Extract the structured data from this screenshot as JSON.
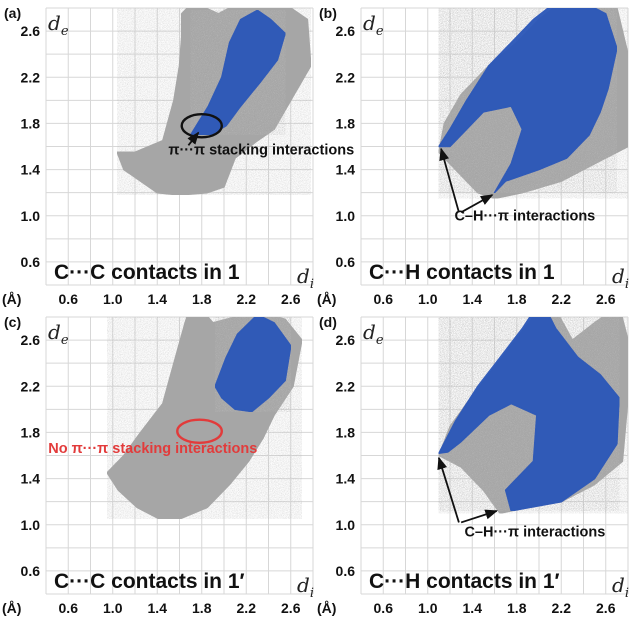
{
  "chart_data": [
    {
      "type": "scatter",
      "panel_label": "(a)",
      "caption": "C···C contacts in 1",
      "xlabel": "d",
      "xlabel_sub": "i",
      "ylabel": "d",
      "ylabel_sub": "e",
      "unit_label": "(Å)",
      "xlim": [
        0.4,
        2.8
      ],
      "ylim": [
        0.4,
        2.8
      ],
      "xticks": [
        "0.6",
        "1.0",
        "1.4",
        "1.8",
        "2.2",
        "2.6"
      ],
      "yticks": [
        "0.6",
        "1.0",
        "1.4",
        "1.8",
        "2.2",
        "2.6"
      ],
      "grid": true,
      "colors": {
        "cloud": "#a6a6a6",
        "highlight": "#2956b8",
        "marker": "#111111",
        "text": "#111111"
      },
      "series": [],
      "regions": [
        {
          "role": "cloud",
          "points": [
            [
              1.04,
              1.55
            ],
            [
              1.2,
              1.55
            ],
            [
              1.45,
              1.65
            ],
            [
              1.55,
              2.0
            ],
            [
              1.6,
              2.3
            ],
            [
              1.62,
              2.55
            ],
            [
              1.62,
              2.75
            ],
            [
              1.72,
              2.85
            ],
            [
              1.95,
              2.75
            ],
            [
              2.15,
              2.85
            ],
            [
              2.4,
              2.8
            ],
            [
              2.6,
              2.8
            ],
            [
              2.75,
              2.7
            ],
            [
              2.78,
              2.3
            ],
            [
              2.6,
              2.0
            ],
            [
              2.45,
              1.75
            ],
            [
              2.3,
              1.65
            ],
            [
              2.1,
              1.5
            ],
            [
              2.0,
              1.25
            ],
            [
              1.85,
              1.2
            ],
            [
              1.6,
              1.18
            ],
            [
              1.4,
              1.2
            ],
            [
              1.25,
              1.3
            ],
            [
              1.1,
              1.4
            ]
          ]
        },
        {
          "role": "highlight",
          "points": [
            [
              1.7,
              1.7
            ],
            [
              1.86,
              1.95
            ],
            [
              1.98,
              2.2
            ],
            [
              2.05,
              2.5
            ],
            [
              2.15,
              2.7
            ],
            [
              2.3,
              2.78
            ],
            [
              2.42,
              2.7
            ],
            [
              2.55,
              2.58
            ],
            [
              2.48,
              2.35
            ],
            [
              2.32,
              2.15
            ],
            [
              2.15,
              1.95
            ],
            [
              2.02,
              1.78
            ],
            [
              1.88,
              1.7
            ]
          ]
        }
      ],
      "markers": [
        {
          "shape": "ellipse",
          "cx": 1.8,
          "cy": 1.78,
          "rx": 0.18,
          "ry": 0.1,
          "color": "#111111"
        }
      ],
      "annotations": [
        {
          "text": "π···π stacking interactions",
          "anchor": [
            1.5,
            1.53
          ],
          "color": "#111111",
          "arrows": [
            [
              [
                1.68,
                1.61
              ],
              [
                1.77,
                1.72
              ]
            ]
          ]
        }
      ]
    },
    {
      "type": "scatter",
      "panel_label": "(b)",
      "caption": "C···H contacts in 1",
      "xlabel": "d",
      "xlabel_sub": "i",
      "ylabel": "d",
      "ylabel_sub": "e",
      "unit_label": "(Å)",
      "xlim": [
        0.4,
        2.8
      ],
      "ylim": [
        0.4,
        2.8
      ],
      "xticks": [
        "0.6",
        "1.0",
        "1.4",
        "1.8",
        "2.2",
        "2.6"
      ],
      "yticks": [
        "0.6",
        "1.0",
        "1.4",
        "1.8",
        "2.2",
        "2.6"
      ],
      "grid": true,
      "colors": {
        "cloud": "#a6a6a6",
        "highlight": "#2956b8",
        "marker": "#111111",
        "text": "#111111"
      },
      "series": [],
      "regions": [
        {
          "role": "cloud",
          "points": [
            [
              1.1,
              1.55
            ],
            [
              1.2,
              1.45
            ],
            [
              1.45,
              1.2
            ],
            [
              1.6,
              1.15
            ],
            [
              1.85,
              1.2
            ],
            [
              2.2,
              1.3
            ],
            [
              2.6,
              1.5
            ],
            [
              2.8,
              1.6
            ],
            [
              2.8,
              2.4
            ],
            [
              2.7,
              2.8
            ],
            [
              2.5,
              2.9
            ],
            [
              2.2,
              2.85
            ],
            [
              2.0,
              2.7
            ],
            [
              1.8,
              2.5
            ],
            [
              1.55,
              2.3
            ],
            [
              1.3,
              2.05
            ],
            [
              1.15,
              1.8
            ]
          ]
        },
        {
          "role": "highlight",
          "points": [
            [
              1.1,
              1.6
            ],
            [
              1.2,
              1.75
            ],
            [
              1.35,
              2.0
            ],
            [
              1.55,
              2.3
            ],
            [
              1.75,
              2.5
            ],
            [
              1.95,
              2.7
            ],
            [
              2.15,
              2.85
            ],
            [
              2.4,
              2.85
            ],
            [
              2.6,
              2.75
            ],
            [
              2.7,
              2.45
            ],
            [
              2.62,
              2.1
            ],
            [
              2.55,
              1.9
            ],
            [
              2.45,
              1.7
            ],
            [
              2.25,
              1.5
            ],
            [
              2.0,
              1.4
            ],
            [
              1.7,
              1.3
            ],
            [
              1.6,
              1.2
            ],
            [
              1.75,
              1.45
            ],
            [
              1.85,
              1.75
            ],
            [
              1.75,
              1.95
            ],
            [
              1.5,
              1.9
            ],
            [
              1.35,
              1.75
            ],
            [
              1.2,
              1.6
            ]
          ]
        }
      ],
      "markers": [],
      "annotations": [
        {
          "text": "C–H···π interactions",
          "anchor": [
            1.24,
            0.96
          ],
          "color": "#111111",
          "arrows": [
            [
              [
                1.28,
                1.03
              ],
              [
                1.12,
                1.58
              ]
            ],
            [
              [
                1.3,
                1.03
              ],
              [
                1.58,
                1.18
              ]
            ]
          ]
        }
      ]
    },
    {
      "type": "scatter",
      "panel_label": "(c)",
      "caption": "C···C contacts in 1′",
      "xlabel": "d",
      "xlabel_sub": "i",
      "ylabel": "d",
      "ylabel_sub": "e",
      "unit_label": "(Å)",
      "xlim": [
        0.4,
        2.8
      ],
      "ylim": [
        0.4,
        2.8
      ],
      "xticks": [
        "0.6",
        "1.0",
        "1.4",
        "1.8",
        "2.2",
        "2.6"
      ],
      "yticks": [
        "0.6",
        "1.0",
        "1.4",
        "1.8",
        "2.2",
        "2.6"
      ],
      "grid": true,
      "colors": {
        "cloud": "#a6a6a6",
        "highlight": "#2956b8",
        "marker": "#e23b3b",
        "text": "#e23b3b"
      },
      "series": [],
      "regions": [
        {
          "role": "cloud",
          "points": [
            [
              0.95,
              1.45
            ],
            [
              1.1,
              1.6
            ],
            [
              1.25,
              1.8
            ],
            [
              1.45,
              2.05
            ],
            [
              1.55,
              2.4
            ],
            [
              1.65,
              2.75
            ],
            [
              1.72,
              2.95
            ],
            [
              1.9,
              2.75
            ],
            [
              2.1,
              2.8
            ],
            [
              2.3,
              2.85
            ],
            [
              2.55,
              2.78
            ],
            [
              2.7,
              2.6
            ],
            [
              2.62,
              2.2
            ],
            [
              2.45,
              1.95
            ],
            [
              2.35,
              1.75
            ],
            [
              2.22,
              1.55
            ],
            [
              2.05,
              1.35
            ],
            [
              1.85,
              1.15
            ],
            [
              1.6,
              1.05
            ],
            [
              1.42,
              1.05
            ],
            [
              1.22,
              1.15
            ],
            [
              1.05,
              1.3
            ]
          ]
        },
        {
          "role": "highlight",
          "points": [
            [
              1.92,
              2.2
            ],
            [
              2.02,
              2.45
            ],
            [
              2.12,
              2.65
            ],
            [
              2.3,
              2.82
            ],
            [
              2.45,
              2.75
            ],
            [
              2.6,
              2.55
            ],
            [
              2.55,
              2.25
            ],
            [
              2.4,
              2.1
            ],
            [
              2.25,
              1.98
            ],
            [
              2.1,
              2.0
            ],
            [
              1.98,
              2.1
            ]
          ]
        }
      ],
      "markers": [
        {
          "shape": "ellipse",
          "cx": 1.78,
          "cy": 1.81,
          "rx": 0.2,
          "ry": 0.1,
          "color": "#e23b3b"
        }
      ],
      "annotations": [
        {
          "text": "No π···π stacking interactions",
          "anchor": [
            0.42,
            1.62
          ],
          "color": "#e23b3b",
          "arrows": []
        }
      ]
    },
    {
      "type": "scatter",
      "panel_label": "(d)",
      "caption": "C···H contacts in 1′",
      "xlabel": "d",
      "xlabel_sub": "i",
      "ylabel": "d",
      "ylabel_sub": "e",
      "unit_label": "(Å)",
      "xlim": [
        0.4,
        2.8
      ],
      "ylim": [
        0.4,
        2.8
      ],
      "xticks": [
        "0.6",
        "1.0",
        "1.4",
        "1.8",
        "2.2",
        "2.6"
      ],
      "yticks": [
        "0.6",
        "1.0",
        "1.4",
        "1.8",
        "2.2",
        "2.6"
      ],
      "grid": true,
      "colors": {
        "cloud": "#a6a6a6",
        "highlight": "#2956b8",
        "marker": "#111111",
        "text": "#111111"
      },
      "series": [],
      "regions": [
        {
          "role": "cloud",
          "points": [
            [
              1.1,
              1.6
            ],
            [
              1.3,
              1.5
            ],
            [
              1.5,
              1.3
            ],
            [
              1.65,
              1.1
            ],
            [
              1.9,
              1.15
            ],
            [
              2.2,
              1.2
            ],
            [
              2.5,
              1.35
            ],
            [
              2.75,
              1.55
            ],
            [
              2.8,
              2.1
            ],
            [
              2.8,
              2.6
            ],
            [
              2.72,
              2.9
            ],
            [
              2.5,
              2.75
            ],
            [
              2.3,
              2.6
            ],
            [
              2.1,
              2.95
            ],
            [
              1.95,
              2.8
            ],
            [
              1.75,
              2.55
            ],
            [
              1.55,
              2.3
            ],
            [
              1.35,
              2.05
            ],
            [
              1.2,
              1.85
            ]
          ]
        },
        {
          "role": "highlight",
          "points": [
            [
              1.1,
              1.62
            ],
            [
              1.25,
              1.9
            ],
            [
              1.45,
              2.2
            ],
            [
              1.65,
              2.45
            ],
            [
              1.85,
              2.7
            ],
            [
              2.02,
              2.95
            ],
            [
              2.15,
              2.7
            ],
            [
              2.35,
              2.45
            ],
            [
              2.55,
              2.3
            ],
            [
              2.72,
              2.1
            ],
            [
              2.7,
              1.7
            ],
            [
              2.5,
              1.4
            ],
            [
              2.2,
              1.2
            ],
            [
              1.75,
              1.12
            ],
            [
              1.7,
              1.3
            ],
            [
              1.95,
              1.55
            ],
            [
              1.98,
              1.95
            ],
            [
              1.75,
              2.05
            ],
            [
              1.55,
              1.95
            ],
            [
              1.3,
              1.72
            ],
            [
              1.18,
              1.63
            ]
          ]
        }
      ],
      "markers": [],
      "annotations": [
        {
          "text": "C–H···π interactions",
          "anchor": [
            1.33,
            0.9
          ],
          "color": "#111111",
          "arrows": [
            [
              [
                1.28,
                1.02
              ],
              [
                1.1,
                1.58
              ]
            ],
            [
              [
                1.3,
                1.02
              ],
              [
                1.62,
                1.12
              ]
            ]
          ]
        }
      ]
    }
  ]
}
